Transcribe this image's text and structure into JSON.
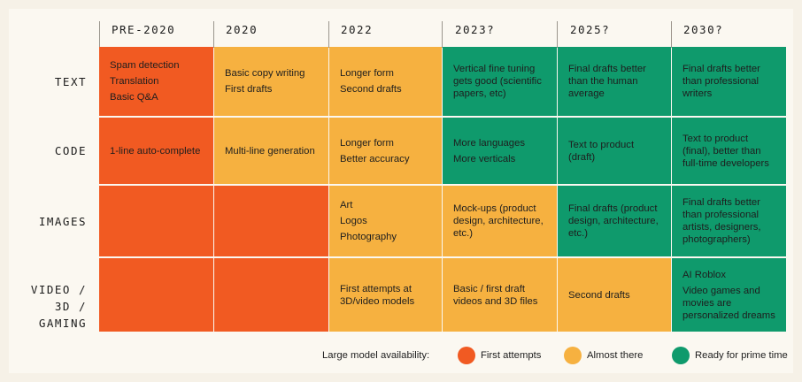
{
  "columns": [
    "PRE-2020",
    "2020",
    "2022",
    "2023?",
    "2025?",
    "2030?"
  ],
  "rows": [
    {
      "label": "TEXT",
      "cells": [
        {
          "status": "first_attempts",
          "items": [
            "Spam detection",
            "Translation",
            "Basic Q&A"
          ]
        },
        {
          "status": "almost_there",
          "items": [
            "Basic copy writing",
            "First drafts"
          ]
        },
        {
          "status": "almost_there",
          "items": [
            "Longer form",
            "Second drafts"
          ]
        },
        {
          "status": "prime_time",
          "items": [
            "Vertical fine tuning gets good (scientific papers, etc)"
          ]
        },
        {
          "status": "prime_time",
          "items": [
            "Final drafts better than the human average"
          ]
        },
        {
          "status": "prime_time",
          "items": [
            "Final drafts better than professional writers"
          ]
        }
      ]
    },
    {
      "label": "CODE",
      "cells": [
        {
          "status": "first_attempts",
          "items": [
            "1-line auto-complete"
          ]
        },
        {
          "status": "almost_there",
          "items": [
            "Multi-line generation"
          ]
        },
        {
          "status": "almost_there",
          "items": [
            "Longer form",
            "Better accuracy"
          ]
        },
        {
          "status": "prime_time",
          "items": [
            "More languages",
            "More verticals"
          ]
        },
        {
          "status": "prime_time",
          "items": [
            "Text to product (draft)"
          ]
        },
        {
          "status": "prime_time",
          "items": [
            "Text to product (final), better than full-time developers"
          ]
        }
      ]
    },
    {
      "label": "IMAGES",
      "cells": [
        {
          "status": "first_attempts",
          "items": []
        },
        {
          "status": "first_attempts",
          "items": []
        },
        {
          "status": "almost_there",
          "items": [
            "Art",
            "Logos",
            "Photography"
          ]
        },
        {
          "status": "almost_there",
          "items": [
            "Mock-ups (product design, architecture, etc.)"
          ]
        },
        {
          "status": "prime_time",
          "items": [
            "Final drafts (product design, architecture, etc.)"
          ]
        },
        {
          "status": "prime_time",
          "items": [
            "Final drafts better than professional artists, designers, photographers)"
          ]
        }
      ]
    },
    {
      "label": "VIDEO / 3D / GAMING",
      "cells": [
        {
          "status": "first_attempts",
          "items": []
        },
        {
          "status": "first_attempts",
          "items": []
        },
        {
          "status": "almost_there",
          "items": [
            "First attempts at 3D/video models"
          ]
        },
        {
          "status": "almost_there",
          "items": [
            "Basic / first draft videos and 3D files"
          ]
        },
        {
          "status": "almost_there",
          "items": [
            "Second drafts"
          ]
        },
        {
          "status": "prime_time",
          "items": [
            "AI Roblox",
            "Video games and movies are personalized dreams"
          ]
        }
      ]
    }
  ],
  "legend": {
    "title": "Large model availability:",
    "items": [
      {
        "status": "first_attempts",
        "label": "First attempts",
        "color": "#f15a22"
      },
      {
        "status": "almost_there",
        "label": "Almost there",
        "color": "#f6b140"
      },
      {
        "status": "prime_time",
        "label": "Ready for prime time",
        "color": "#0f9a6c"
      }
    ]
  }
}
